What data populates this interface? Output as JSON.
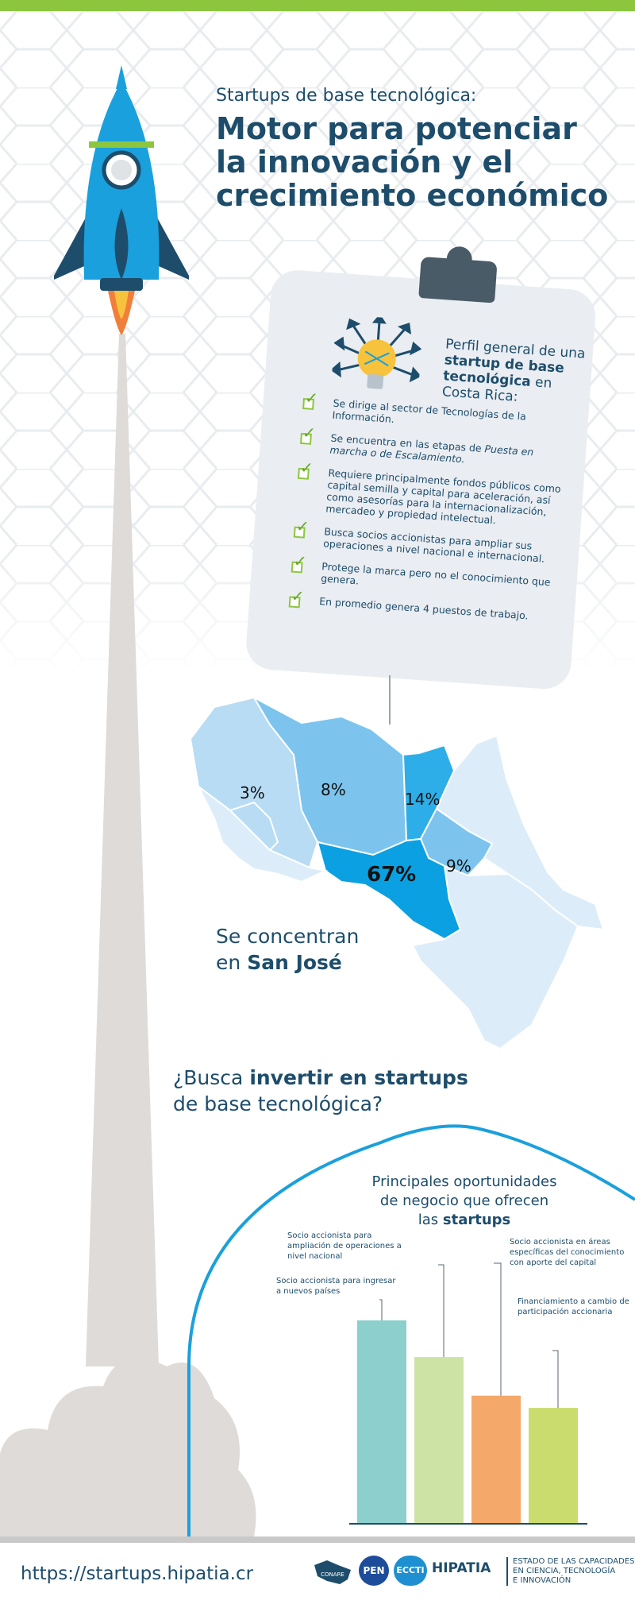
{
  "header": {
    "subtitle": "Startups de base tecnológica:",
    "title": "Motor para potenciar la innovación y el crecimiento económico"
  },
  "profile": {
    "title_pre": "Perfil general de una ",
    "title_bold": "startup de base tecnológica",
    "title_post": " en Costa Rica:",
    "items": [
      {
        "text": "Se dirige al sector de Tecnologías de la Información."
      },
      {
        "text_pre": "Se encuentra en las etapas de ",
        "text_em": "Puesta en marcha o de Escalamiento."
      },
      {
        "text": "Requiere principalmente fondos públicos como capital semilla y capital para aceleración, así como asesorías para la internacionalización, mercadeo y propiedad intelectual."
      },
      {
        "text": "Busca socios accionistas para ampliar sus operaciones a nivel nacional e internacional."
      },
      {
        "text": "Protege la marca pero no el conocimiento que genera."
      },
      {
        "text": "En promedio genera 4 puestos de trabajo."
      }
    ]
  },
  "map": {
    "regions": [
      {
        "label": "3%",
        "value": 3
      },
      {
        "label": "8%",
        "value": 8
      },
      {
        "label": "14%",
        "value": 14
      },
      {
        "label": "9%",
        "value": 9
      },
      {
        "label": "67%",
        "value": 67
      }
    ],
    "caption_pre": "Se concentran",
    "caption_pre2": "en ",
    "caption_bold": "San José"
  },
  "invest": {
    "q_pre": "¿Busca ",
    "q_bold": "invertir en startups",
    "q_post": "de base tecnológica?"
  },
  "opportunities": {
    "title_line1": "Principales oportunidades",
    "title_line2": "de negocio que ofrecen",
    "title_pre3": "las ",
    "title_bold3": "startups"
  },
  "chart_data": {
    "type": "bar",
    "categories": [
      "Socio accionista para ingresar a nuevos países",
      "Socio accionista para ampliación de operaciones a nivel nacional",
      "Socio accionista en áreas específicas del conocimiento con aporte del capital",
      "Financiamiento a cambio de participación accionaria"
    ],
    "values": [
      100,
      82,
      63,
      57
    ],
    "colors": [
      "#8ccfcc",
      "#cde3a6",
      "#f4a96b",
      "#cbdc6e"
    ]
  },
  "footer": {
    "url": "https://startups.hipatia.cr",
    "logos": [
      "CONARE",
      "PEN",
      "ECCTI",
      "HIPATIA"
    ],
    "state_line1": "ESTADO DE LAS CAPACIDADES",
    "state_line2": "EN CIENCIA, TECNOLOGÍA",
    "state_line3": "E INNOVACIÓN"
  }
}
